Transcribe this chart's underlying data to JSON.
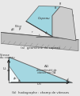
{
  "bg_color": "#e8e8e8",
  "fig_bg": "#e8e8e8",
  "top": {
    "label": "(a)  géométrie du copeau",
    "chip_color": "#99d4e0",
    "workpiece_color": "#bbbbbb",
    "tool_color": "#cccccc"
  },
  "bottom": {
    "label": "(b)  hodographe : champ de vitesses",
    "tri_color": "#99d4e0"
  }
}
